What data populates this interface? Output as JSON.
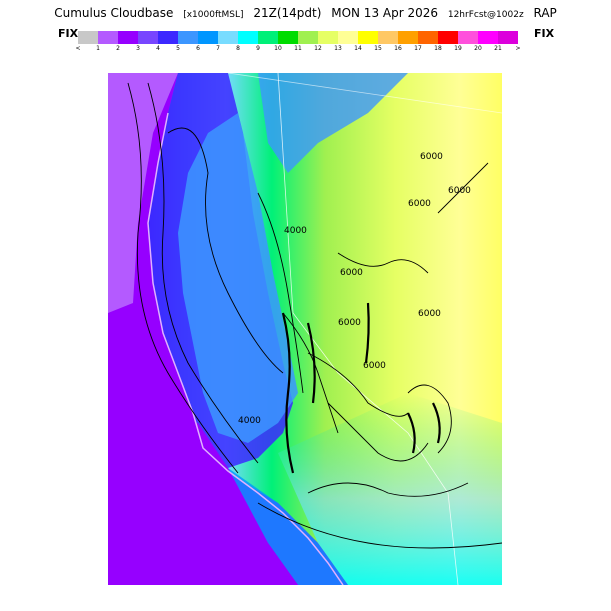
{
  "header": {
    "product": "Cumulus Cloudbase",
    "units": "[x1000ftMSL]",
    "valid_time": "21Z(14pdt)",
    "date": "MON 13 Apr 2026",
    "forecast": "12hrFcst@1002z",
    "model": "RAP"
  },
  "legend": {
    "fix_left": "FIX",
    "fix_right": "FIX",
    "below_label": "<",
    "above_label": ">",
    "tick_labels": [
      "1",
      "2",
      "3",
      "4",
      "5",
      "6",
      "7",
      "8",
      "9",
      "10",
      "11",
      "12",
      "13",
      "14",
      "15",
      "16",
      "17",
      "18",
      "19",
      "20",
      "21"
    ],
    "colors": [
      "#c8c8c8",
      "#b45aff",
      "#9600ff",
      "#7846ff",
      "#3c28ff",
      "#3c96ff",
      "#0096ff",
      "#78dcff",
      "#00ffff",
      "#00f078",
      "#00dc00",
      "#a0f050",
      "#e6ff64",
      "#ffff96",
      "#ffff00",
      "#ffc864",
      "#ffa000",
      "#ff6400",
      "#ff0000",
      "#ff50dc",
      "#ff00ff",
      "#dc00dc"
    ]
  },
  "map": {
    "contour_labels": [
      "6000",
      "6000",
      "6000",
      "6000",
      "6000",
      "6000",
      "6000",
      "4000",
      "4000"
    ]
  }
}
